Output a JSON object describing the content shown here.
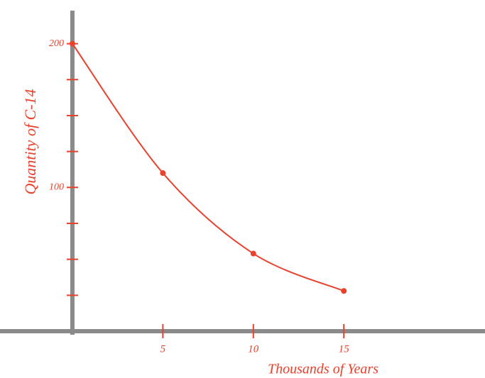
{
  "chart_data": {
    "type": "line",
    "x_label": "Thousands of Years",
    "y_label": "Quantity of C-14",
    "x": [
      0,
      5,
      10,
      15
    ],
    "series": [
      {
        "color": "#e8412c",
        "values": [
          200,
          110,
          54,
          28
        ]
      }
    ],
    "xlim": [
      -4,
      22.8
    ],
    "xticks": [
      5,
      10,
      15
    ],
    "ylim": [
      0,
      223
    ],
    "yticks": [
      100,
      200
    ],
    "minor_yticks": [
      25,
      50,
      75,
      125,
      150,
      175
    ],
    "axis_color": "#8a8a8a"
  }
}
